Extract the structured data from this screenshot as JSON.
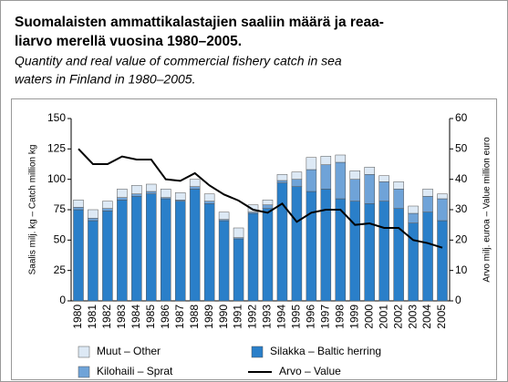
{
  "chart_data": {
    "type": "bar",
    "title": [
      "Suomalaisten ammattikalastajien saaliin määrä ja reaa-",
      "liarvo merellä vuosina 1980–2005."
    ],
    "subtitle": [
      "Quantity and real value of commercial fishery catch in sea",
      "waters in Finland  in 1980–2005."
    ],
    "ylabel": "Saalis milj. kg – Catch million kg",
    "y2label": "Arvo milj. euroa – Value million euro",
    "categories": [
      "1980",
      "1981",
      "1982",
      "1983",
      "1984",
      "1985",
      "1986",
      "1987",
      "1988",
      "1989",
      "1990",
      "1991",
      "1992",
      "1993",
      "1994",
      "1995",
      "1996",
      "1997",
      "1998",
      "1999",
      "2000",
      "2001",
      "2002",
      "2003",
      "2004",
      "2005"
    ],
    "series": [
      {
        "name": "Silakka – Baltic herring",
        "color": "#2a7fc9",
        "values": [
          75,
          66,
          74,
          83,
          86,
          88,
          84,
          82,
          92,
          80,
          66,
          51,
          72,
          76,
          97,
          94,
          90,
          92,
          84,
          82,
          80,
          82,
          76,
          64,
          73,
          66
        ]
      },
      {
        "name": "Kilohaili – Sprat",
        "color": "#6fa3d8",
        "values": [
          2,
          2,
          2,
          2,
          2,
          2,
          1,
          1,
          2,
          2,
          1,
          1,
          1,
          3,
          2,
          6,
          18,
          20,
          30,
          18,
          24,
          16,
          16,
          8,
          13,
          18
        ]
      },
      {
        "name": "Muut – Other",
        "color": "#dde9f5",
        "values": [
          6,
          7,
          6,
          7,
          7,
          6,
          7,
          6,
          6,
          6,
          6,
          8,
          6,
          4,
          5,
          6,
          10,
          7,
          6,
          7,
          6,
          5,
          6,
          6,
          6,
          4
        ]
      },
      {
        "name": "Arvo – Value",
        "color": "#000000",
        "type": "line",
        "axis": "y2",
        "values": [
          50,
          45,
          45,
          47.5,
          46.5,
          46.5,
          40,
          39.5,
          42,
          38,
          35,
          33,
          30,
          29,
          32,
          26,
          29,
          30,
          30,
          25,
          25.5,
          24,
          24,
          20,
          19,
          17.5
        ]
      }
    ],
    "ylim": [
      0,
      150
    ],
    "yticks": [
      0,
      25,
      50,
      75,
      100,
      125,
      150
    ],
    "y2lim": [
      0,
      60
    ],
    "y2ticks": [
      0,
      10,
      20,
      30,
      40,
      50,
      60
    ],
    "grid": false
  }
}
